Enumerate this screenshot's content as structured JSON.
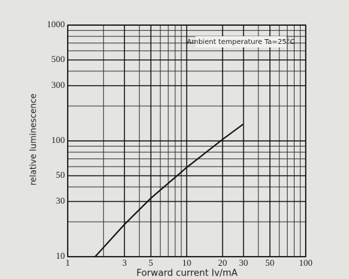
{
  "chart_data": {
    "type": "line",
    "x_label": "Forward current Iv/mA",
    "y_label": "relative luminescence",
    "annotation": "Ambient temperature Ta=25°C",
    "x": [
      1.7,
      3,
      5,
      10,
      20,
      30
    ],
    "values": [
      10,
      19,
      32,
      59,
      103,
      140
    ],
    "color": "#111111",
    "x_log": true,
    "y_log": true,
    "grid": true,
    "xlim": [
      1,
      100
    ],
    "ylim": [
      10,
      1000
    ],
    "xticks": [
      1,
      3,
      5,
      10,
      20,
      30,
      50,
      100
    ],
    "yticks": [
      10,
      30,
      50,
      100,
      300,
      500,
      1000
    ],
    "x_minor_grid": [
      2,
      4,
      6,
      7,
      8,
      9,
      40,
      60,
      70,
      80,
      90
    ],
    "y_minor_grid": [
      20,
      40,
      60,
      70,
      80,
      90,
      200,
      400,
      600,
      700,
      800,
      900
    ]
  }
}
